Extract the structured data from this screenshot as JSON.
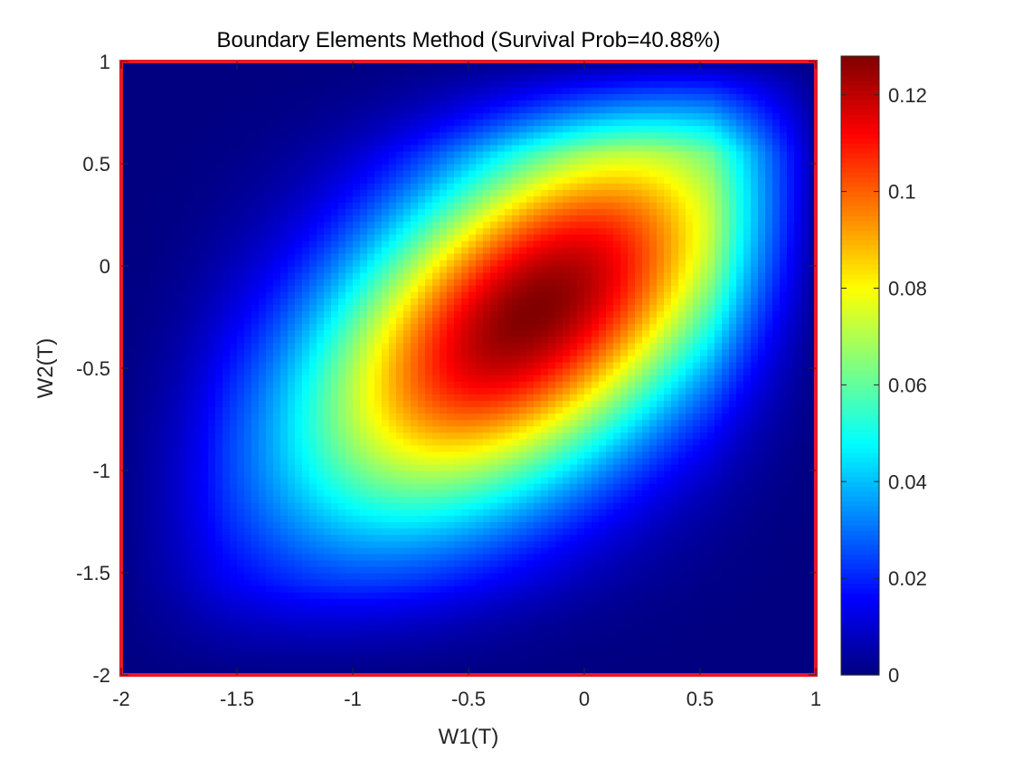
{
  "chart_data": {
    "type": "heatmap",
    "title": "Boundary Elements Method (Survival Prob=40.88%)",
    "xlabel": "W1(T)",
    "ylabel": "W2(T)",
    "xlim": [
      -2,
      1
    ],
    "ylim": [
      -2,
      1
    ],
    "x_ticks": [
      -2,
      -1.5,
      -1,
      -0.5,
      0,
      0.5,
      1
    ],
    "y_ticks": [
      -2,
      -1.5,
      -1,
      -0.5,
      0,
      0.5,
      1
    ],
    "x_tick_labels": [
      "-2",
      "-1.5",
      "-1",
      "-0.5",
      "0",
      "0.5",
      "1"
    ],
    "y_tick_labels": [
      "-2",
      "-1.5",
      "-1",
      "-0.5",
      "0",
      "0.5",
      "1"
    ],
    "colormap": "jet",
    "colorbar": {
      "limits": [
        0,
        0.128
      ],
      "ticks": [
        0,
        0.02,
        0.04,
        0.06,
        0.08,
        0.1,
        0.12
      ],
      "tick_labels": [
        "0",
        "0.02",
        "0.04",
        "0.06",
        "0.08",
        "0.1",
        "0.12"
      ],
      "placement": "right"
    },
    "peak": {
      "x": -0.22,
      "y": -0.22,
      "value": 0.128
    },
    "boundary": {
      "x": [
        -2,
        1
      ],
      "y": [
        -2,
        1
      ],
      "color": "#e8192c"
    },
    "grid": false
  }
}
